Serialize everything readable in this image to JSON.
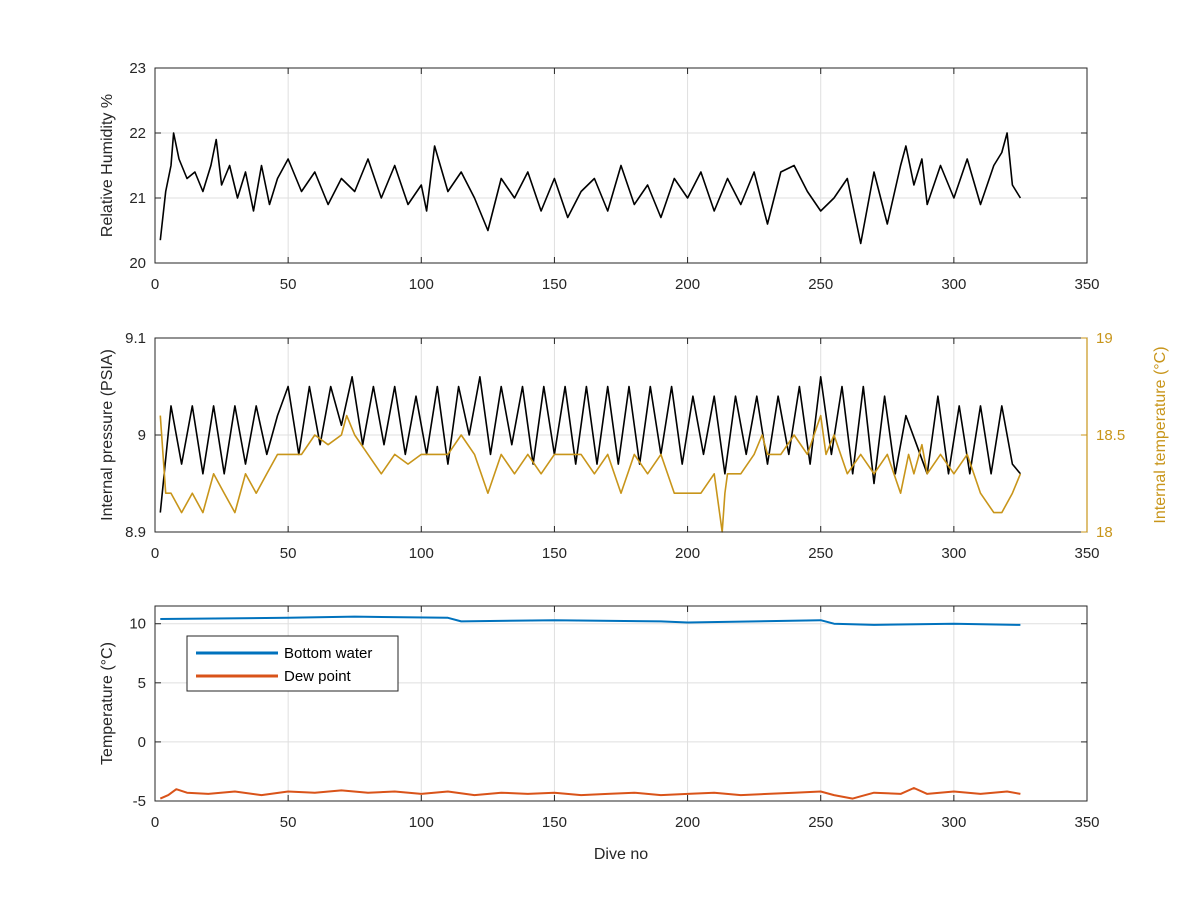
{
  "chart_data": [
    {
      "type": "line",
      "xlabel": "",
      "ylabel": "Relative Humidity %",
      "xlim": [
        0,
        350
      ],
      "ylim": [
        20,
        23
      ],
      "xticks": [
        0,
        50,
        100,
        150,
        200,
        250,
        300,
        350
      ],
      "yticks": [
        20,
        21,
        22,
        23
      ],
      "grid": true,
      "series": [
        {
          "color": "#000000",
          "x": [
            2,
            4,
            6,
            7,
            9,
            12,
            15,
            18,
            21,
            23,
            25,
            28,
            31,
            34,
            37,
            40,
            43,
            46,
            50,
            55,
            60,
            65,
            70,
            75,
            80,
            85,
            90,
            95,
            100,
            102,
            105,
            110,
            115,
            120,
            125,
            130,
            135,
            140,
            145,
            150,
            155,
            160,
            165,
            170,
            175,
            180,
            185,
            190,
            195,
            200,
            205,
            210,
            215,
            220,
            225,
            230,
            235,
            240,
            245,
            250,
            255,
            260,
            265,
            270,
            275,
            280,
            282,
            285,
            288,
            290,
            295,
            300,
            305,
            310,
            315,
            318,
            320,
            322,
            325
          ],
          "y": [
            20.35,
            21.1,
            21.5,
            22.0,
            21.6,
            21.3,
            21.4,
            21.1,
            21.5,
            21.9,
            21.2,
            21.5,
            21.0,
            21.4,
            20.8,
            21.5,
            20.9,
            21.3,
            21.6,
            21.1,
            21.4,
            20.9,
            21.3,
            21.1,
            21.6,
            21.0,
            21.5,
            20.9,
            21.2,
            20.8,
            21.8,
            21.1,
            21.4,
            21.0,
            20.5,
            21.3,
            21.0,
            21.4,
            20.8,
            21.3,
            20.7,
            21.1,
            21.3,
            20.8,
            21.5,
            20.9,
            21.2,
            20.7,
            21.3,
            21.0,
            21.4,
            20.8,
            21.3,
            20.9,
            21.4,
            20.6,
            21.4,
            21.5,
            21.1,
            20.8,
            21.0,
            21.3,
            20.3,
            21.4,
            20.6,
            21.5,
            21.8,
            21.2,
            21.6,
            20.9,
            21.5,
            21.0,
            21.6,
            20.9,
            21.5,
            21.7,
            22.0,
            21.2,
            21.0
          ]
        }
      ]
    },
    {
      "type": "line",
      "xlabel": "",
      "ylabel": "Internal pressure (PSIA)",
      "ylabel_right": "Internal temperature (°C)",
      "xlim": [
        0,
        350
      ],
      "ylim": [
        8.9,
        9.1
      ],
      "ylim_right": [
        18,
        19
      ],
      "xticks": [
        0,
        50,
        100,
        150,
        200,
        250,
        300,
        350
      ],
      "yticks": [
        8.9,
        9,
        9.1
      ],
      "yticks_right": [
        18,
        18.5,
        19
      ],
      "grid": true,
      "series": [
        {
          "axis": "left",
          "color": "#000000",
          "x": [
            2,
            6,
            10,
            14,
            18,
            22,
            26,
            30,
            34,
            38,
            42,
            46,
            50,
            54,
            58,
            62,
            66,
            70,
            74,
            78,
            82,
            86,
            90,
            94,
            98,
            102,
            106,
            110,
            114,
            118,
            122,
            126,
            130,
            134,
            138,
            142,
            146,
            150,
            154,
            158,
            162,
            166,
            170,
            174,
            178,
            182,
            186,
            190,
            194,
            198,
            202,
            206,
            210,
            214,
            218,
            222,
            226,
            230,
            234,
            238,
            242,
            246,
            250,
            254,
            258,
            262,
            266,
            270,
            274,
            278,
            282,
            286,
            290,
            294,
            298,
            302,
            306,
            310,
            314,
            318,
            322,
            325
          ],
          "y": [
            8.92,
            9.03,
            8.97,
            9.03,
            8.96,
            9.03,
            8.96,
            9.03,
            8.97,
            9.03,
            8.98,
            9.02,
            9.05,
            8.98,
            9.05,
            8.99,
            9.05,
            9.01,
            9.06,
            8.99,
            9.05,
            8.99,
            9.05,
            8.98,
            9.04,
            8.98,
            9.05,
            8.97,
            9.05,
            9.0,
            9.06,
            8.98,
            9.05,
            8.99,
            9.05,
            8.97,
            9.05,
            8.98,
            9.05,
            8.97,
            9.05,
            8.97,
            9.05,
            8.97,
            9.05,
            8.97,
            9.05,
            8.98,
            9.05,
            8.97,
            9.04,
            8.98,
            9.04,
            8.96,
            9.04,
            8.98,
            9.04,
            8.97,
            9.04,
            8.98,
            9.05,
            8.97,
            9.06,
            8.98,
            9.05,
            8.96,
            9.05,
            8.95,
            9.04,
            8.96,
            9.02,
            8.99,
            8.96,
            9.04,
            8.96,
            9.03,
            8.96,
            9.03,
            8.96,
            9.03,
            8.97,
            8.96
          ]
        },
        {
          "axis": "right",
          "color": "#c8951a",
          "x": [
            2,
            4,
            6,
            10,
            14,
            18,
            22,
            26,
            30,
            34,
            38,
            42,
            46,
            50,
            55,
            60,
            65,
            70,
            72,
            75,
            80,
            85,
            90,
            95,
            100,
            105,
            110,
            115,
            120,
            125,
            130,
            135,
            140,
            145,
            150,
            155,
            160,
            165,
            170,
            175,
            180,
            185,
            190,
            195,
            200,
            205,
            210,
            213,
            214,
            215,
            220,
            225,
            228,
            230,
            235,
            240,
            245,
            250,
            252,
            255,
            260,
            265,
            270,
            275,
            280,
            283,
            285,
            288,
            290,
            295,
            300,
            305,
            310,
            315,
            318,
            322,
            325
          ],
          "y": [
            18.6,
            18.2,
            18.2,
            18.1,
            18.2,
            18.1,
            18.3,
            18.2,
            18.1,
            18.3,
            18.2,
            18.3,
            18.4,
            18.4,
            18.4,
            18.5,
            18.45,
            18.5,
            18.6,
            18.5,
            18.4,
            18.3,
            18.4,
            18.35,
            18.4,
            18.4,
            18.4,
            18.5,
            18.4,
            18.2,
            18.4,
            18.3,
            18.4,
            18.3,
            18.4,
            18.4,
            18.4,
            18.3,
            18.4,
            18.2,
            18.4,
            18.3,
            18.4,
            18.2,
            18.2,
            18.2,
            18.3,
            18.0,
            18.2,
            18.3,
            18.3,
            18.4,
            18.5,
            18.4,
            18.4,
            18.5,
            18.4,
            18.6,
            18.4,
            18.5,
            18.3,
            18.4,
            18.3,
            18.4,
            18.2,
            18.4,
            18.3,
            18.45,
            18.3,
            18.4,
            18.3,
            18.4,
            18.2,
            18.1,
            18.1,
            18.2,
            18.3
          ]
        }
      ]
    },
    {
      "type": "line",
      "xlabel": "Dive no",
      "ylabel": "Temperature (°C)",
      "xlim": [
        0,
        350
      ],
      "ylim": [
        -5,
        11.5
      ],
      "xticks": [
        0,
        50,
        100,
        150,
        200,
        250,
        300,
        350
      ],
      "yticks": [
        -5,
        0,
        5,
        10
      ],
      "grid": true,
      "legend": "top-left",
      "series": [
        {
          "name": "Bottom water",
          "color": "#0072bd",
          "x": [
            2,
            50,
            75,
            110,
            115,
            150,
            190,
            200,
            250,
            255,
            270,
            300,
            325
          ],
          "y": [
            10.4,
            10.5,
            10.6,
            10.5,
            10.2,
            10.3,
            10.2,
            10.1,
            10.3,
            10.0,
            9.9,
            10.0,
            9.9
          ]
        },
        {
          "name": "Dew point",
          "color": "#d95319",
          "x": [
            2,
            5,
            8,
            12,
            20,
            30,
            40,
            50,
            60,
            70,
            80,
            90,
            100,
            110,
            120,
            130,
            140,
            150,
            160,
            170,
            180,
            190,
            200,
            210,
            220,
            230,
            240,
            250,
            255,
            262,
            265,
            270,
            280,
            285,
            290,
            300,
            310,
            320,
            325
          ],
          "y": [
            -4.8,
            -4.5,
            -4.0,
            -4.3,
            -4.4,
            -4.2,
            -4.5,
            -4.2,
            -4.3,
            -4.1,
            -4.3,
            -4.2,
            -4.4,
            -4.2,
            -4.5,
            -4.3,
            -4.4,
            -4.3,
            -4.5,
            -4.4,
            -4.3,
            -4.5,
            -4.4,
            -4.3,
            -4.5,
            -4.4,
            -4.3,
            -4.2,
            -4.5,
            -4.8,
            -4.6,
            -4.3,
            -4.4,
            -3.9,
            -4.4,
            -4.2,
            -4.4,
            -4.2,
            -4.4
          ]
        }
      ]
    }
  ]
}
